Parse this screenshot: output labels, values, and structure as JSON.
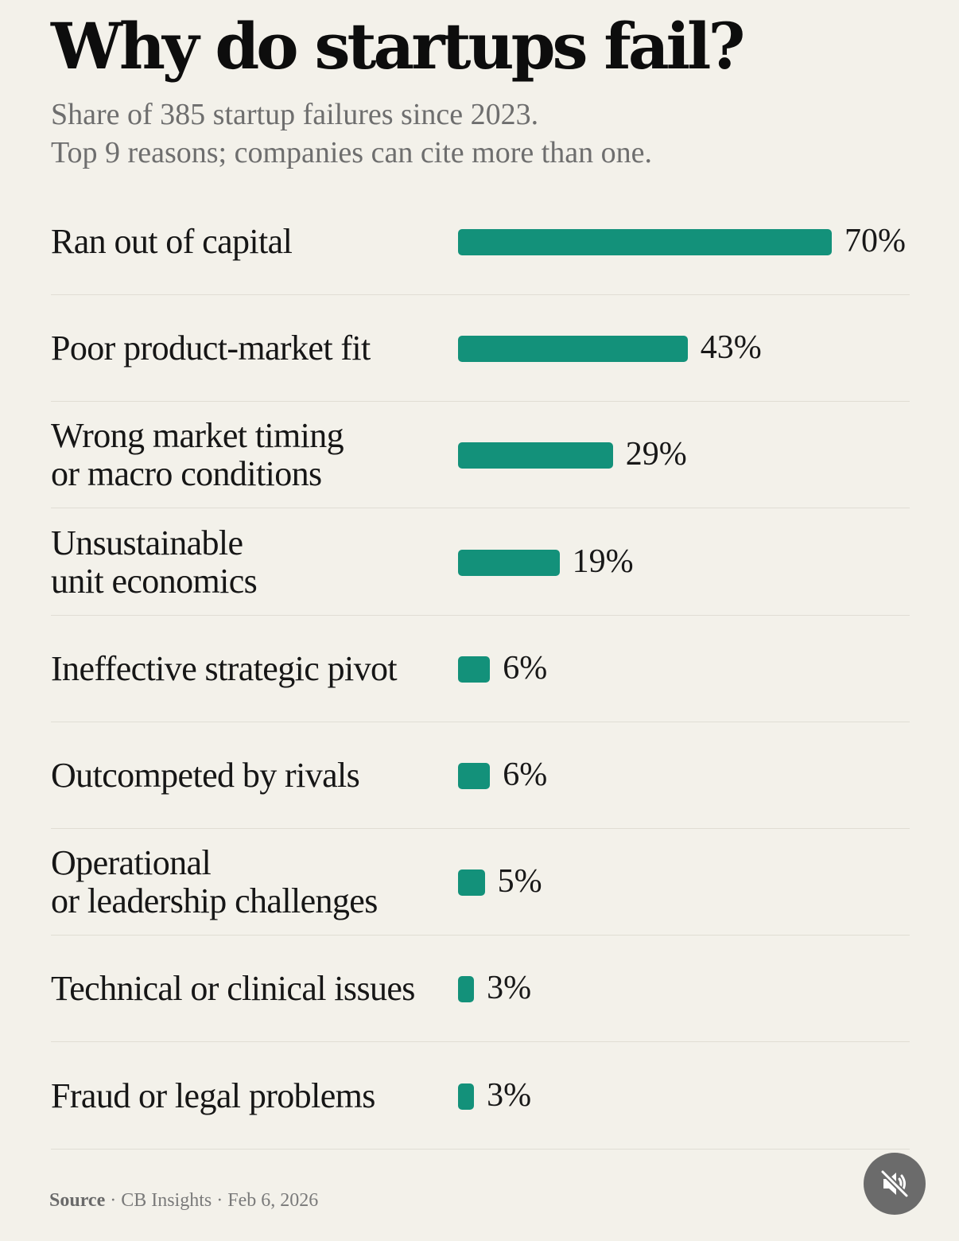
{
  "header": {
    "title": "Why do startups fail?",
    "subtitle_line1": "Share of 385 startup failures since 2023.",
    "subtitle_line2": "Top 9 reasons; companies can cite more than one."
  },
  "footer": {
    "source_label": "Source",
    "source_text": " · CB Insights · Feb 6, 2026"
  },
  "controls": {
    "mute_icon": "speaker-muted-icon"
  },
  "colors": {
    "background": "#f3f1ea",
    "bar": "#13917a",
    "divider": "#e0ddd4"
  },
  "chart_data": {
    "type": "bar",
    "orientation": "horizontal",
    "title": "Why do startups fail?",
    "subtitle": "Share of 385 startup failures since 2023. Top 9 reasons; companies can cite more than one.",
    "unit": "%",
    "xlim": [
      0,
      70
    ],
    "grid": false,
    "categories": [
      "Ran out of capital",
      "Poor product-market fit",
      "Wrong market timing\nor macro conditions",
      "Unsustainable\nunit economics",
      "Ineffective strategic pivot",
      "Outcompeted by rivals",
      "Operational\nor leadership challenges",
      "Technical or clinical issues",
      "Fraud or legal problems"
    ],
    "values": [
      70,
      43,
      29,
      19,
      6,
      6,
      5,
      3,
      3
    ],
    "value_labels": [
      "70%",
      "43%",
      "29%",
      "19%",
      "6%",
      "6%",
      "5%",
      "3%",
      "3%"
    ]
  }
}
